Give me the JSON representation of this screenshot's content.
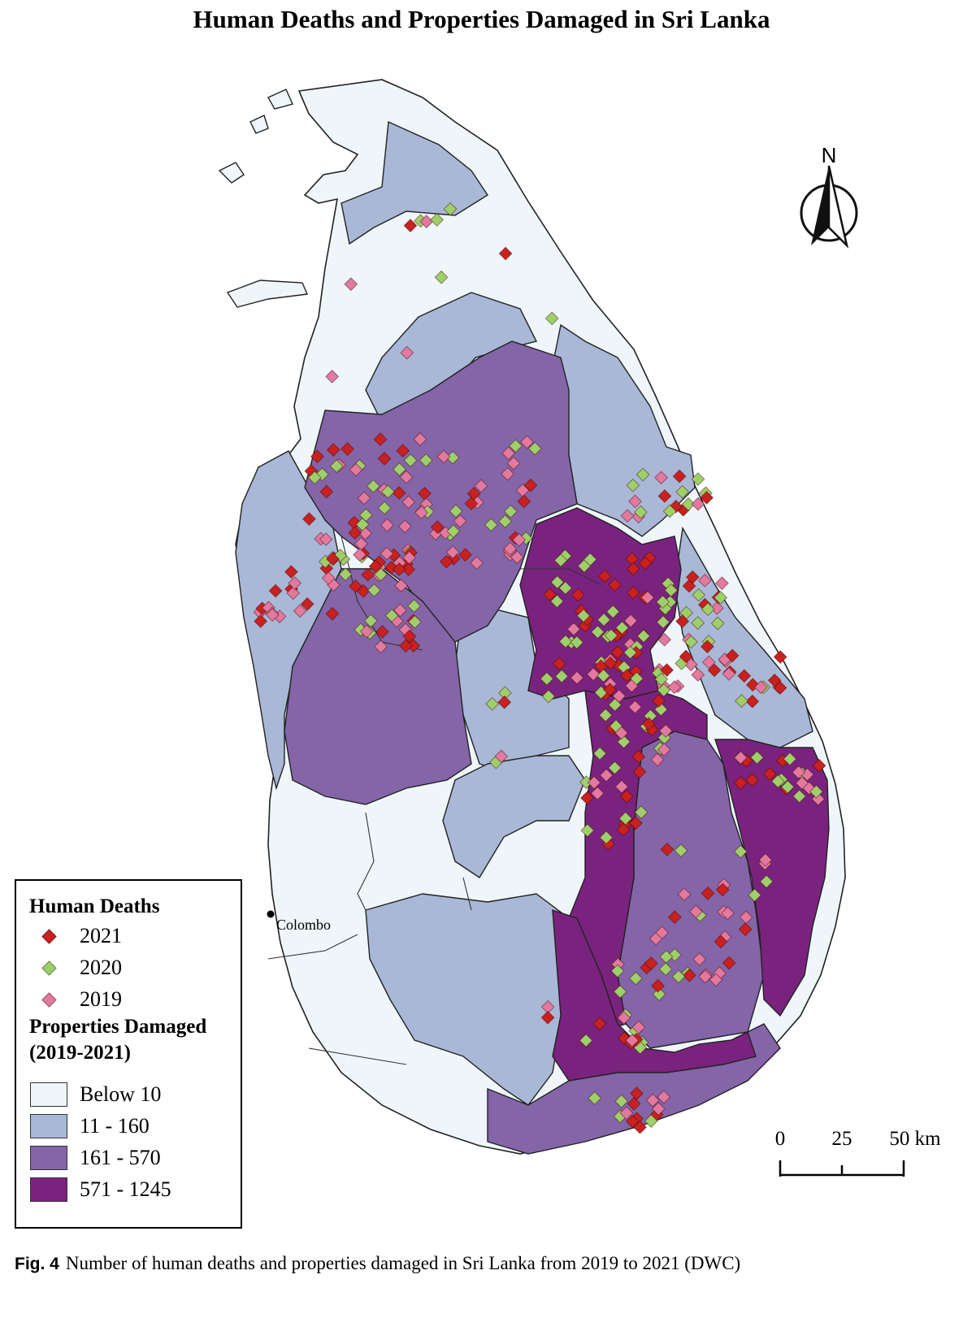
{
  "title": "Human Deaths and Properties Damaged in Sri Lanka",
  "colors": {
    "below_10": "#eef6fa",
    "c11_160": "#a9b8d6",
    "c161_570": "#8465a8",
    "c571_1245": "#7a237e",
    "deaths_2021": "#c8211f",
    "deaths_2020": "#9fcf6a",
    "deaths_2019": "#e2799f"
  },
  "legend": {
    "deaths_title": "Human Deaths",
    "deaths_items": [
      {
        "label": "2021",
        "color": "#c8211f"
      },
      {
        "label": "2020",
        "color": "#9fcf6a"
      },
      {
        "label": "2019",
        "color": "#e2799f"
      }
    ],
    "properties_title_1": "Properties Damaged",
    "properties_title_2": "(2019-2021)",
    "properties_items": [
      {
        "label": "Below 10",
        "color": "#eef6fa"
      },
      {
        "label": "11 - 160",
        "color": "#a9b8d6"
      },
      {
        "label": "161 - 570",
        "color": "#8465a8"
      },
      {
        "label": "571 - 1245",
        "color": "#7a237e"
      }
    ]
  },
  "city": "Colombo",
  "north_label": "N",
  "scale": {
    "labels": [
      "0",
      "25",
      "50 km"
    ]
  },
  "caption": {
    "fig": "Fig. 4",
    "text": "Number of human deaths and properties damaged in Sri Lanka from 2019 to 2021 (DWC)"
  }
}
